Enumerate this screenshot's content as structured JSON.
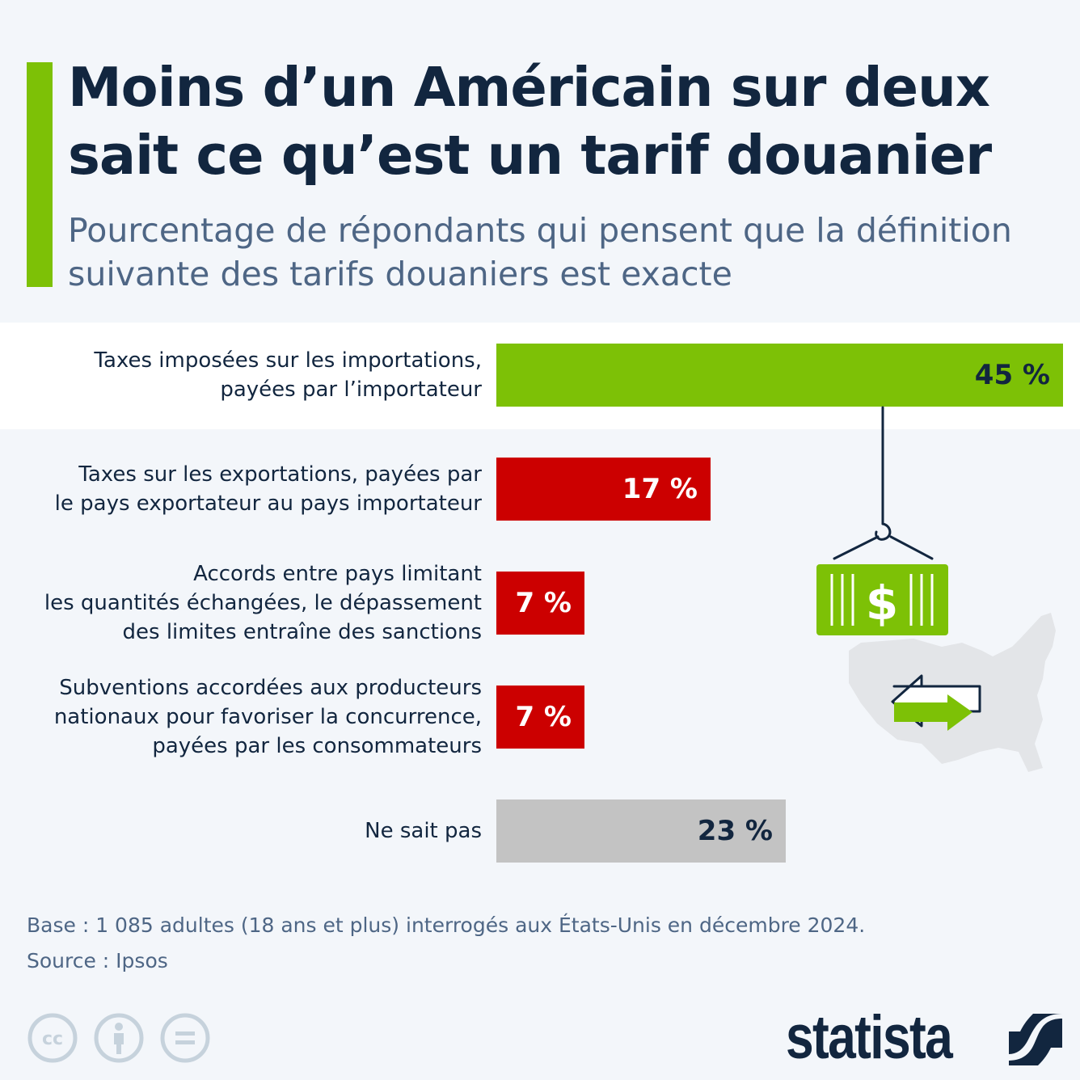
{
  "header": {
    "title": "Moins d’un Américain sur deux sait ce qu’est un tarif douanier",
    "subtitle": "Pourcentage de répondants qui pensent que la définition suivante des tarifs douaniers est exacte"
  },
  "colors": {
    "accent": "#7dc106",
    "correct": "#7dc106",
    "incorrect": "#cc0000",
    "unknown": "#c3c3c3",
    "dark": "#12263f"
  },
  "chart_data": {
    "type": "bar",
    "orientation": "horizontal",
    "title": "Moins d’un Américain sur deux sait ce qu’est un tarif douanier",
    "subtitle": "Pourcentage de répondants qui pensent que la définition suivante des tarifs douaniers est exacte",
    "xlabel": "",
    "ylabel": "",
    "xlim": [
      0,
      45
    ],
    "grid": false,
    "unit": "%",
    "categories": [
      [
        "Taxes imposées sur les importations,",
        "payées par l’importateur"
      ],
      [
        "Taxes sur les exportations, payées par",
        "le pays exportateur au pays importateur"
      ],
      [
        "Accords entre pays limitant",
        "les quantités échangées, le dépassement",
        "des limites entraîne des sanctions"
      ],
      [
        "Subventions accordées aux producteurs",
        "nationaux pour favoriser la concurrence,",
        "payées par les consommateurs"
      ],
      [
        "Ne sait pas"
      ]
    ],
    "values": [
      45,
      17,
      7,
      7,
      23
    ],
    "value_labels": [
      "45 %",
      "17 %",
      "7 %",
      "7 %",
      "23 %"
    ],
    "bar_kinds": [
      "correct",
      "incorrect",
      "incorrect",
      "incorrect",
      "unknown"
    ]
  },
  "footer": {
    "base": "Base : 1 085 adultes (18 ans et plus) interrogés aux États-Unis en décembre 2024.",
    "source": "Source : Ipsos",
    "brand": "statista"
  },
  "icons": {
    "license": [
      "cc-icon",
      "attribution-icon",
      "no-derivatives-icon"
    ],
    "illustration": [
      "crane-hook-icon",
      "dollar-container-icon",
      "usa-map-icon",
      "trade-arrows-icon"
    ]
  }
}
